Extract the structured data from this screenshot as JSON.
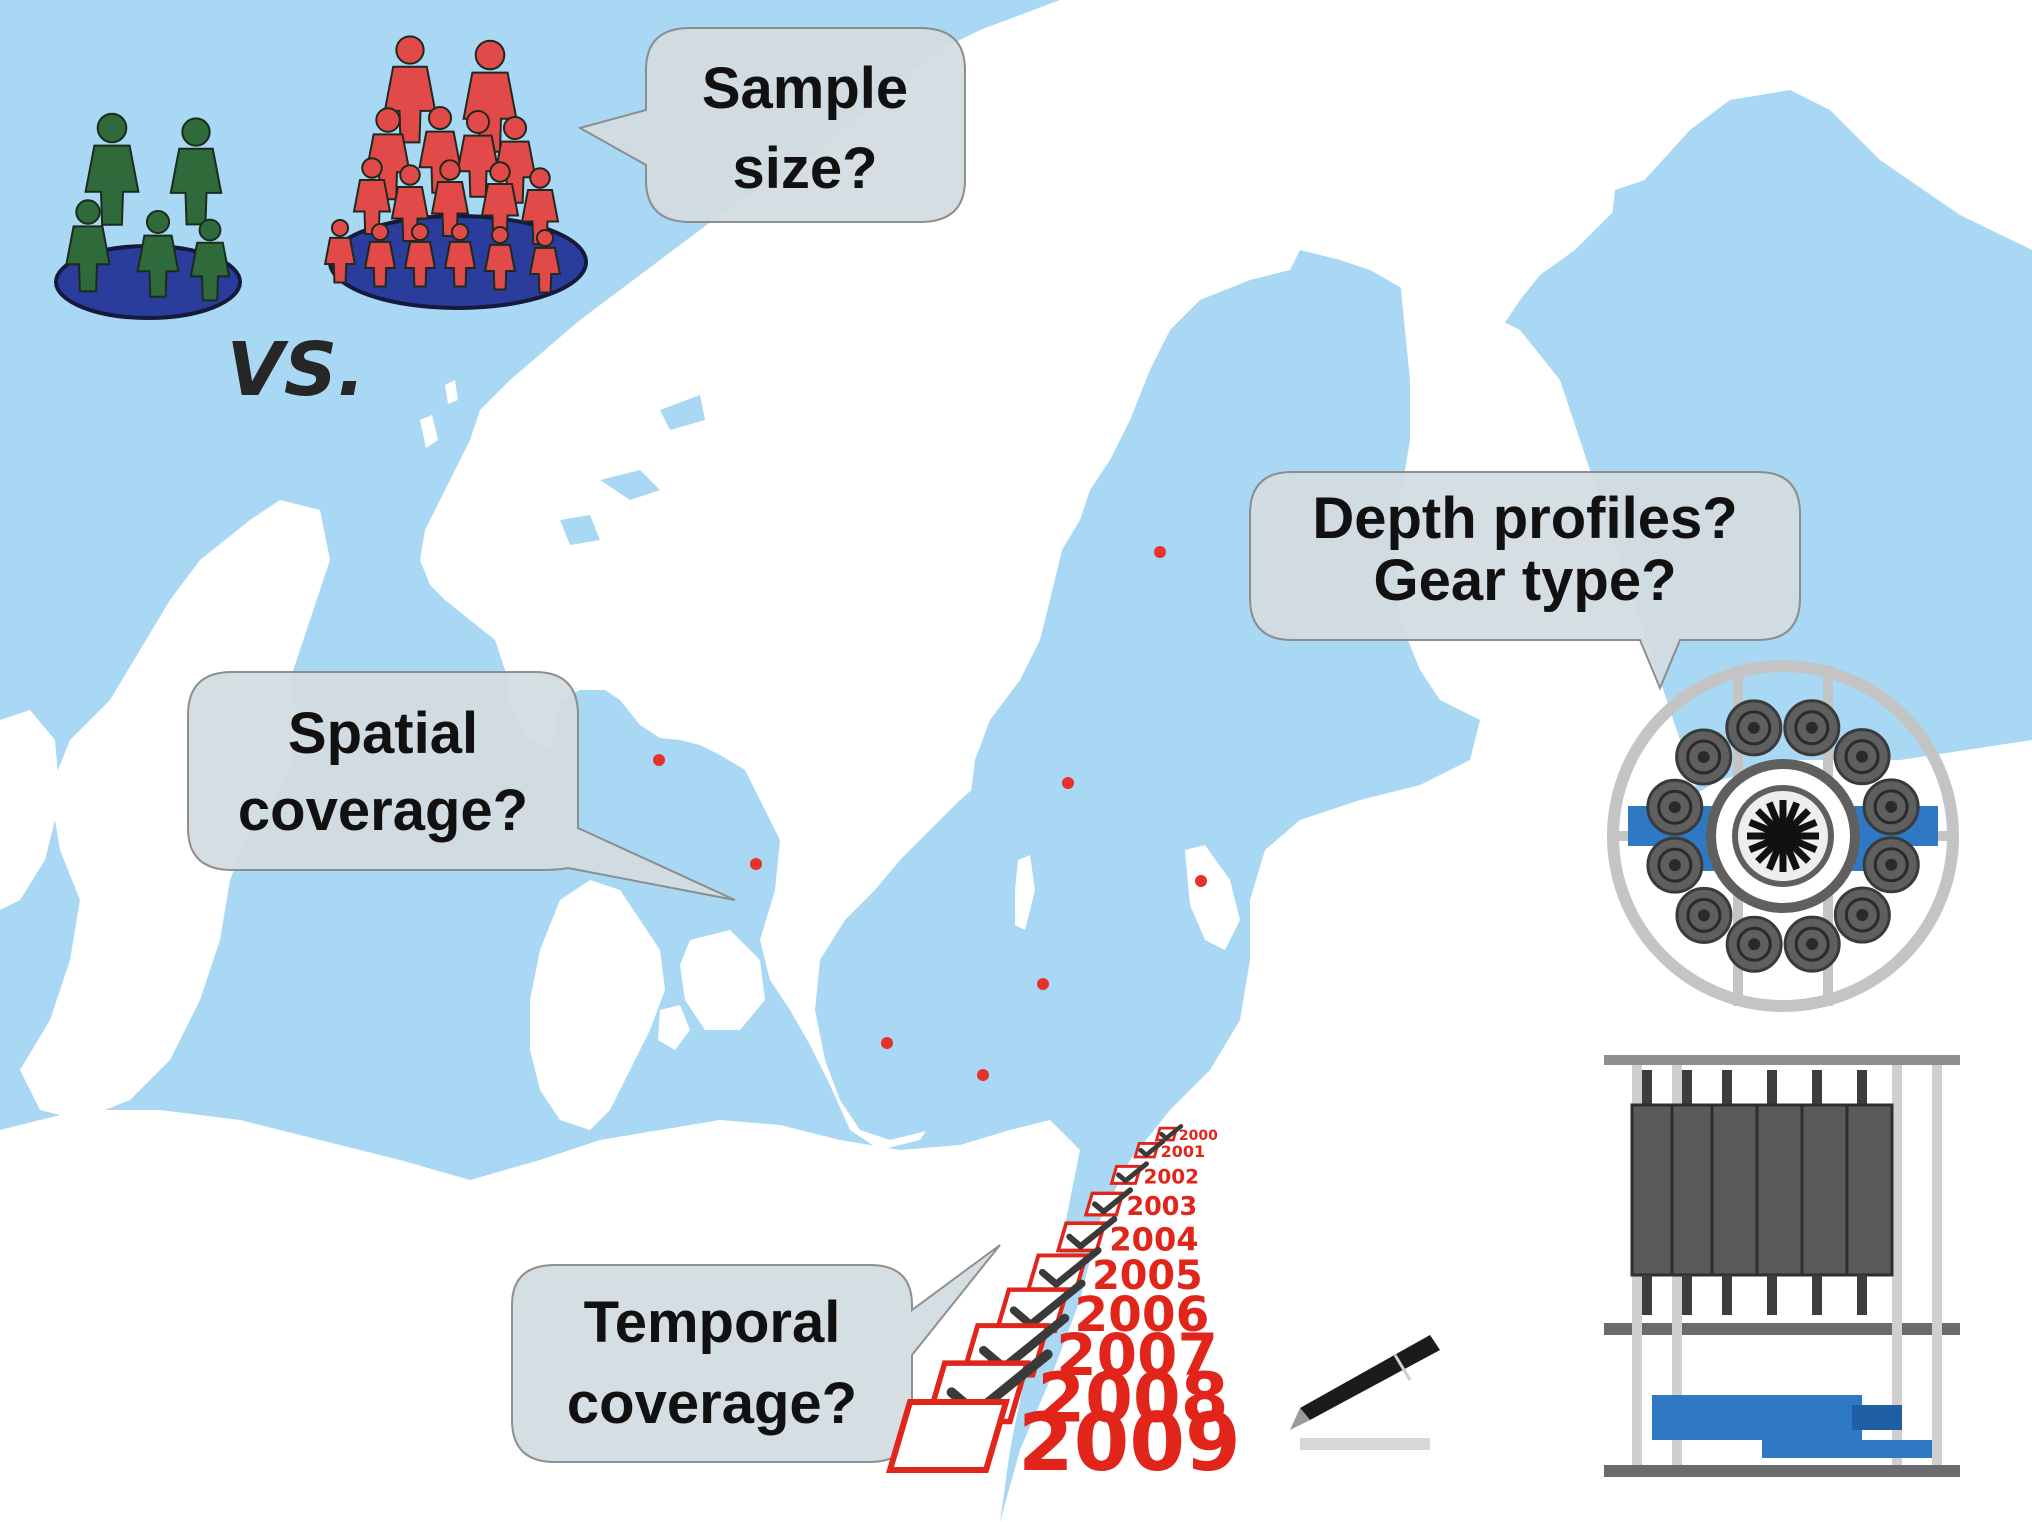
{
  "colors": {
    "sea": "#a8d8f4",
    "land": "#ffffff",
    "station": "#e8312a",
    "bubble_fill": "#d3dde2",
    "bubble_stroke": "#8a8a8a",
    "group_small": "#2f6b3a",
    "group_large": "#e24a4a",
    "platform": "#2a3d9c",
    "calendar_red": "#e1251b",
    "gear_gray": "#5f5f5f",
    "gear_blue": "#2f79c4"
  },
  "bubbles": {
    "sample_size": [
      "Sample",
      "size?"
    ],
    "spatial": [
      "Spatial",
      "coverage?"
    ],
    "depth_gear": [
      "Depth profiles?",
      "Gear type?"
    ],
    "temporal": [
      "Temporal",
      "coverage?"
    ]
  },
  "vs_label": "VS.",
  "years": [
    "2000",
    "2001",
    "2002",
    "2003",
    "2004",
    "2005",
    "2006",
    "2007",
    "2008",
    "2009"
  ],
  "icons": {
    "small_group": "people-group-icon",
    "large_group": "people-group-icon",
    "checklist": "checklist-icon",
    "pen": "pen-icon",
    "gear_top": "sampling-rosette-icon",
    "gear_side": "sampling-frame-icon"
  }
}
